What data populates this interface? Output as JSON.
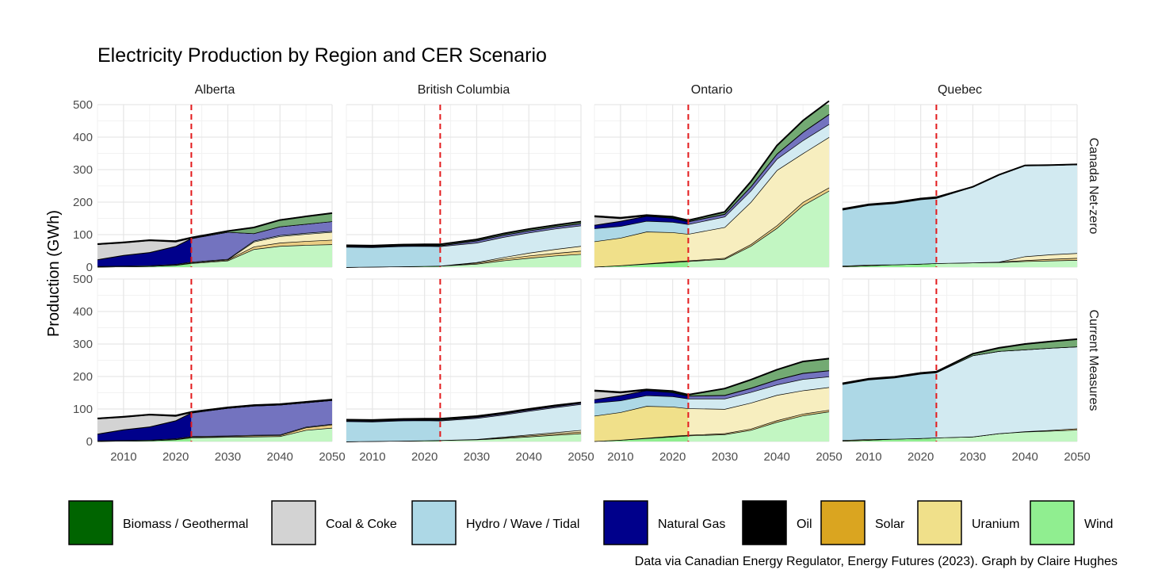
{
  "chart_data": {
    "type": "area",
    "title": "Electricity Production by Region and CER Scenario",
    "ylabel": "Production (GWh)",
    "xlabel": "",
    "caption": "Data via Canadian Energy Regulator, Energy Futures (2023). Graph by Claire Hughes",
    "xlim": [
      2005,
      2050
    ],
    "ylim": [
      0,
      500
    ],
    "x_ticks": [
      2010,
      2020,
      2030,
      2040,
      2050
    ],
    "y_ticks": [
      0,
      100,
      200,
      300,
      400,
      500
    ],
    "reference_line": {
      "x": 2023,
      "color": "#e31a1c",
      "style": "dashed"
    },
    "grid": true,
    "legend_position": "bottom",
    "regions": [
      "Alberta",
      "British Columbia",
      "Ontario",
      "Quebec"
    ],
    "scenarios": [
      "Canada Net-zero",
      "Current Measures"
    ],
    "sources": [
      {
        "name": "Biomass / Geothermal",
        "color": "#006400"
      },
      {
        "name": "Coal & Coke",
        "color": "#d3d3d3"
      },
      {
        "name": "Hydro / Wave / Tidal",
        "color": "#add8e6"
      },
      {
        "name": "Natural Gas",
        "color": "#00008b"
      },
      {
        "name": "Oil",
        "color": "#000000"
      },
      {
        "name": "Solar",
        "color": "#daa520"
      },
      {
        "name": "Uranium",
        "color": "#f0e08a"
      },
      {
        "name": "Wind",
        "color": "#90ee90"
      }
    ],
    "years": [
      2005,
      2010,
      2015,
      2020,
      2023,
      2030,
      2035,
      2040,
      2045,
      2050
    ],
    "panels": [
      {
        "region": "Alberta",
        "scenario": "Canada Net-zero",
        "series": {
          "Wind": [
            1,
            2,
            3,
            6,
            12,
            20,
            55,
            65,
            68,
            70
          ],
          "Solar": [
            0,
            0,
            0,
            1,
            2,
            3,
            8,
            10,
            12,
            14
          ],
          "Uranium": [
            0,
            0,
            0,
            0,
            0,
            0,
            15,
            20,
            22,
            24
          ],
          "Hydro / Wave / Tidal": [
            2,
            2,
            2,
            2,
            2,
            2,
            3,
            3,
            3,
            3
          ],
          "Natural Gas": [
            20,
            32,
            40,
            55,
            72,
            83,
            23,
            27,
            28,
            30
          ],
          "Oil": [
            1,
            1,
            1,
            1,
            1,
            0,
            0,
            0,
            0,
            0
          ],
          "Coal & Coke": [
            46,
            38,
            36,
            13,
            0,
            0,
            0,
            0,
            0,
            0
          ],
          "Biomass / Geothermal": [
            1,
            1,
            1,
            2,
            2,
            3,
            18,
            20,
            23,
            25
          ]
        }
      },
      {
        "region": "British Columbia",
        "scenario": "Canada Net-zero",
        "series": {
          "Wind": [
            0,
            1,
            2,
            3,
            4,
            10,
            20,
            28,
            35,
            40
          ],
          "Solar": [
            0,
            0,
            0,
            0,
            0,
            3,
            5,
            7,
            8,
            10
          ],
          "Uranium": [
            0,
            0,
            0,
            0,
            0,
            2,
            5,
            9,
            12,
            15
          ],
          "Hydro / Wave / Tidal": [
            62,
            60,
            62,
            62,
            60,
            60,
            62,
            62,
            63,
            63
          ],
          "Natural Gas": [
            2,
            2,
            2,
            2,
            2,
            6,
            6,
            6,
            6,
            6
          ],
          "Oil": [
            1,
            1,
            1,
            1,
            1,
            1,
            1,
            1,
            1,
            1
          ],
          "Coal & Coke": [
            0,
            0,
            0,
            0,
            0,
            0,
            0,
            0,
            0,
            0
          ],
          "Biomass / Geothermal": [
            2,
            2,
            2,
            2,
            3,
            3,
            4,
            4,
            4,
            5
          ]
        }
      },
      {
        "region": "Ontario",
        "scenario": "Canada Net-zero",
        "series": {
          "Wind": [
            1,
            5,
            10,
            15,
            18,
            25,
            65,
            120,
            190,
            235
          ],
          "Solar": [
            0,
            0,
            1,
            2,
            2,
            3,
            5,
            8,
            10,
            10
          ],
          "Uranium": [
            78,
            85,
            98,
            90,
            82,
            95,
            130,
            170,
            150,
            155
          ],
          "Hydro / Wave / Tidal": [
            40,
            36,
            33,
            32,
            30,
            32,
            35,
            35,
            40,
            40
          ],
          "Natural Gas": [
            10,
            15,
            15,
            12,
            8,
            8,
            12,
            15,
            25,
            30
          ],
          "Oil": [
            1,
            1,
            1,
            1,
            1,
            1,
            1,
            1,
            1,
            1
          ],
          "Coal & Coke": [
            25,
            8,
            0,
            0,
            0,
            0,
            0,
            0,
            0,
            0
          ],
          "Biomass / Geothermal": [
            2,
            2,
            2,
            3,
            3,
            6,
            15,
            25,
            35,
            40
          ]
        }
      },
      {
        "region": "Quebec",
        "scenario": "Canada Net-zero",
        "series": {
          "Wind": [
            2,
            5,
            8,
            10,
            12,
            14,
            15,
            18,
            20,
            22
          ],
          "Solar": [
            0,
            0,
            0,
            0,
            0,
            0,
            1,
            3,
            5,
            6
          ],
          "Uranium": [
            2,
            2,
            0,
            0,
            0,
            0,
            0,
            12,
            14,
            15
          ],
          "Hydro / Wave / Tidal": [
            172,
            183,
            188,
            198,
            200,
            233,
            268,
            280,
            275,
            273
          ],
          "Natural Gas": [
            1,
            1,
            1,
            1,
            1,
            0,
            0,
            0,
            0,
            0
          ],
          "Oil": [
            1,
            1,
            1,
            1,
            1,
            0,
            0,
            0,
            0,
            0
          ],
          "Coal & Coke": [
            0,
            0,
            0,
            0,
            0,
            0,
            0,
            0,
            0,
            0
          ],
          "Biomass / Geothermal": [
            1,
            1,
            1,
            1,
            1,
            0,
            0,
            0,
            0,
            0
          ]
        }
      },
      {
        "region": "Alberta",
        "scenario": "Current Measures",
        "series": {
          "Wind": [
            1,
            2,
            3,
            6,
            12,
            14,
            15,
            16,
            35,
            42
          ],
          "Solar": [
            0,
            0,
            0,
            1,
            2,
            2,
            3,
            3,
            8,
            10
          ],
          "Uranium": [
            0,
            0,
            0,
            0,
            0,
            0,
            0,
            0,
            0,
            0
          ],
          "Hydro / Wave / Tidal": [
            2,
            2,
            2,
            2,
            2,
            2,
            2,
            2,
            2,
            2
          ],
          "Natural Gas": [
            20,
            32,
            40,
            55,
            72,
            85,
            90,
            92,
            75,
            73
          ],
          "Oil": [
            1,
            1,
            1,
            1,
            1,
            0,
            0,
            0,
            0,
            0
          ],
          "Coal & Coke": [
            46,
            38,
            36,
            13,
            0,
            0,
            0,
            0,
            0,
            0
          ],
          "Biomass / Geothermal": [
            1,
            1,
            1,
            2,
            2,
            2,
            2,
            2,
            2,
            2
          ]
        }
      },
      {
        "region": "British Columbia",
        "scenario": "Current Measures",
        "series": {
          "Wind": [
            0,
            1,
            2,
            3,
            4,
            6,
            10,
            15,
            20,
            25
          ],
          "Solar": [
            0,
            0,
            0,
            0,
            0,
            1,
            2,
            3,
            4,
            5
          ],
          "Uranium": [
            0,
            0,
            0,
            0,
            0,
            0,
            2,
            3,
            4,
            5
          ],
          "Hydro / Wave / Tidal": [
            62,
            60,
            62,
            62,
            60,
            65,
            68,
            73,
            77,
            80
          ],
          "Natural Gas": [
            2,
            2,
            2,
            2,
            2,
            3,
            3,
            3,
            3,
            3
          ],
          "Oil": [
            1,
            1,
            1,
            1,
            1,
            1,
            1,
            1,
            1,
            1
          ],
          "Coal & Coke": [
            0,
            0,
            0,
            0,
            0,
            0,
            0,
            0,
            0,
            0
          ],
          "Biomass / Geothermal": [
            2,
            2,
            2,
            2,
            3,
            2,
            2,
            2,
            2,
            1
          ]
        }
      },
      {
        "region": "Ontario",
        "scenario": "Current Measures",
        "series": {
          "Wind": [
            1,
            5,
            10,
            15,
            18,
            22,
            35,
            60,
            80,
            92
          ],
          "Solar": [
            0,
            0,
            1,
            2,
            2,
            3,
            4,
            5,
            5,
            5
          ],
          "Uranium": [
            78,
            85,
            98,
            90,
            82,
            75,
            80,
            78,
            72,
            70
          ],
          "Hydro / Wave / Tidal": [
            40,
            36,
            33,
            32,
            30,
            32,
            33,
            32,
            35,
            33
          ],
          "Natural Gas": [
            10,
            15,
            15,
            12,
            8,
            10,
            12,
            15,
            18,
            18
          ],
          "Oil": [
            1,
            1,
            1,
            1,
            1,
            1,
            1,
            1,
            1,
            1
          ],
          "Coal & Coke": [
            25,
            8,
            0,
            0,
            0,
            0,
            0,
            0,
            0,
            0
          ],
          "Biomass / Geothermal": [
            2,
            2,
            2,
            3,
            3,
            20,
            25,
            30,
            35,
            36
          ]
        }
      },
      {
        "region": "Quebec",
        "scenario": "Current Measures",
        "series": {
          "Wind": [
            2,
            5,
            8,
            10,
            12,
            15,
            25,
            30,
            33,
            36
          ],
          "Solar": [
            0,
            0,
            0,
            0,
            0,
            0,
            0,
            1,
            2,
            4
          ],
          "Uranium": [
            2,
            2,
            0,
            0,
            0,
            0,
            0,
            0,
            0,
            0
          ],
          "Hydro / Wave / Tidal": [
            172,
            183,
            188,
            198,
            200,
            250,
            253,
            252,
            253,
            252
          ],
          "Natural Gas": [
            1,
            1,
            1,
            1,
            1,
            0,
            0,
            0,
            0,
            0
          ],
          "Oil": [
            1,
            1,
            1,
            1,
            1,
            0,
            0,
            0,
            0,
            0
          ],
          "Coal & Coke": [
            0,
            0,
            0,
            0,
            0,
            0,
            0,
            0,
            0,
            0
          ],
          "Biomass / Geothermal": [
            1,
            1,
            1,
            1,
            1,
            5,
            10,
            17,
            20,
            23
          ]
        }
      }
    ]
  }
}
